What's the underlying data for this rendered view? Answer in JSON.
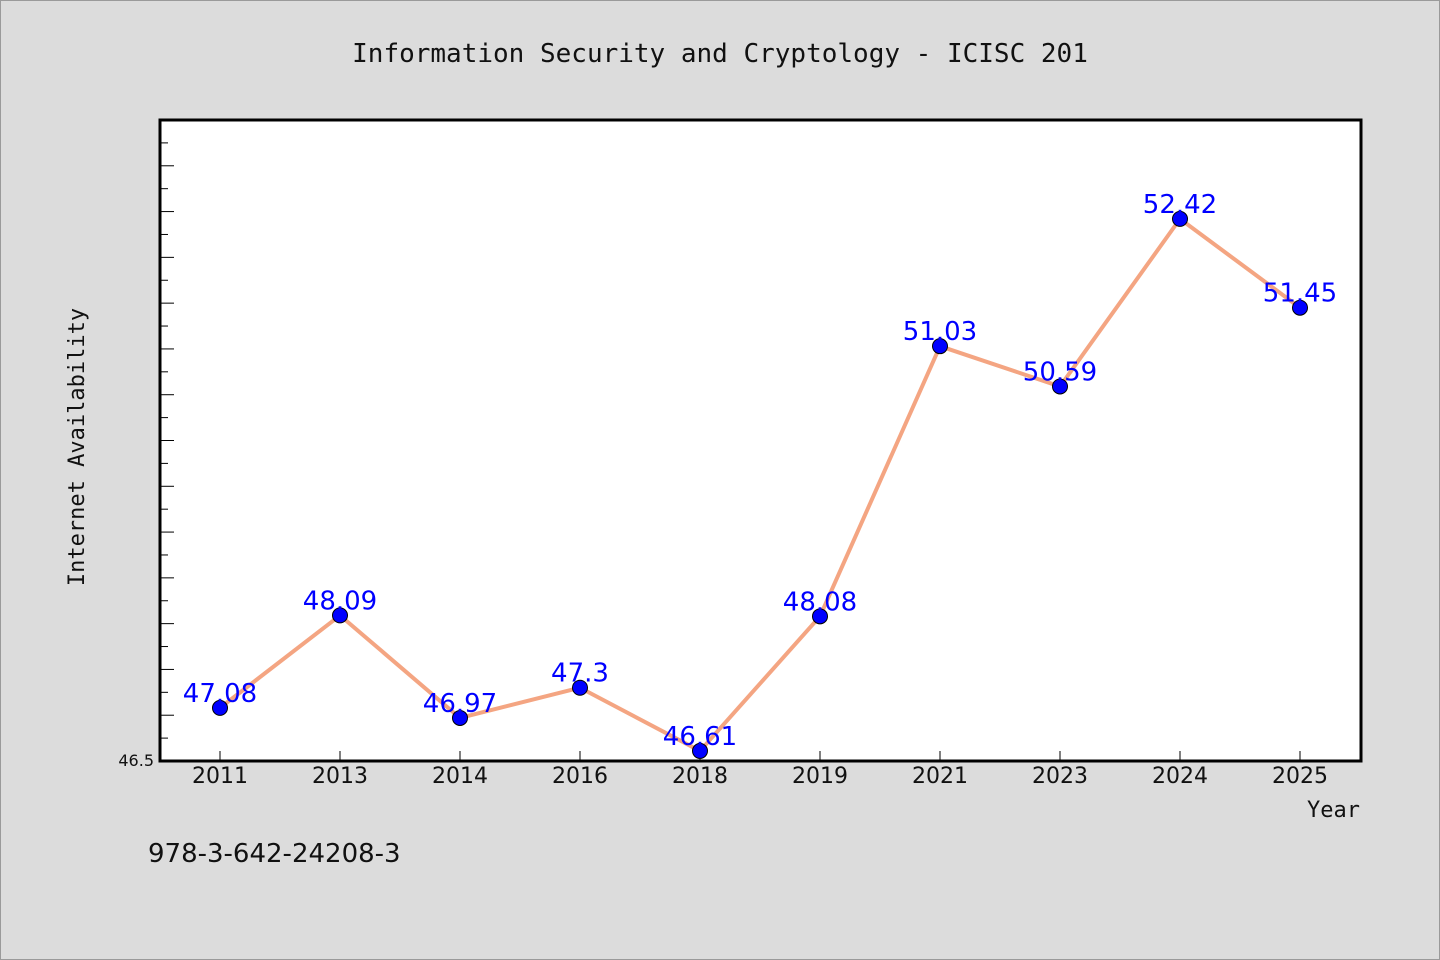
{
  "chart_data": {
    "type": "line",
    "title": "Information Security and Cryptology - ICISC 201",
    "xlabel": "Year",
    "ylabel": "Internet Availability",
    "categories": [
      "2011",
      "2013",
      "2014",
      "2016",
      "2018",
      "2019",
      "2021",
      "2023",
      "2024",
      "2025"
    ],
    "series": [
      {
        "values": [
          47.08,
          48.09,
          46.97,
          47.3,
          46.61,
          48.08,
          51.03,
          50.59,
          52.42,
          51.45
        ],
        "labels": [
          "47.08",
          "48.09",
          "46.97",
          "47.3",
          "46.61",
          "48.08",
          "51.03",
          "50.59",
          "52.42",
          "51.45"
        ]
      }
    ],
    "ylim": [
      46.5,
      53.5
    ],
    "yticks_labeled": [
      "46.5"
    ],
    "grid": false,
    "line_color": "#f4a582",
    "marker_color": "#0000ff",
    "label_color": "#0000ff",
    "plot_background": "#ffffff",
    "figure_background": "#dcdcdc"
  },
  "footer": {
    "isbn": "978-3-642-24208-3"
  }
}
